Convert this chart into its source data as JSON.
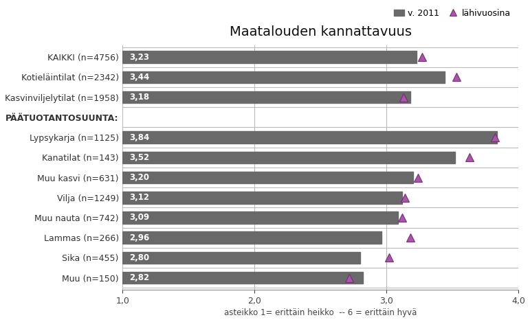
{
  "title": "Maatalouden kannattavuus",
  "categories": [
    "KAIKKI (n=4756)",
    "Kotieläintilat (n=2342)",
    "Kasvinviljelytilat (n=1958)",
    "PÄÄTUOTANTOSUUNTA:",
    "Lypsykarja (n=1125)",
    "Kanatilat (n=143)",
    "Muu kasvi (n=631)",
    "Vilja (n=1249)",
    "Muu nauta (n=742)",
    "Lammas (n=266)",
    "Sika (n=455)",
    "Muu (n=150)"
  ],
  "bar_values": [
    3.23,
    3.44,
    3.18,
    null,
    3.84,
    3.52,
    3.2,
    3.12,
    3.09,
    2.96,
    2.8,
    2.82
  ],
  "bar_labels": [
    "3,23",
    "3,44",
    "3,18",
    "",
    "3,84",
    "3,52",
    "3,20",
    "3,12",
    "3,09",
    "2,96",
    "2,80",
    "2,82"
  ],
  "triangle_values": [
    3.27,
    3.53,
    3.13,
    null,
    3.82,
    3.63,
    3.24,
    3.14,
    3.12,
    3.18,
    3.02,
    2.72
  ],
  "bar_color": "#696969",
  "triangle_color": "#aa55aa",
  "triangle_edge_color": "#7a2a7a",
  "xlim": [
    1.0,
    4.0
  ],
  "xlabel_note": "asteikko 1= erittäin heikko  -- 6 = erittäin hyvä",
  "xticks": [
    1.0,
    2.0,
    3.0,
    4.0
  ],
  "xtick_labels": [
    "1,0",
    "2,0",
    "3,0",
    "4,0"
  ],
  "legend_bar_label": "v. 2011",
  "legend_tri_label": "lähivuosina",
  "title_fontsize": 14,
  "label_fontsize": 9,
  "bar_label_fontsize": 8.5,
  "background_color": "#ffffff",
  "grid_color": "#bbbbbb",
  "tick_label_color": "#333333",
  "paatuotanto_color": "#333333"
}
